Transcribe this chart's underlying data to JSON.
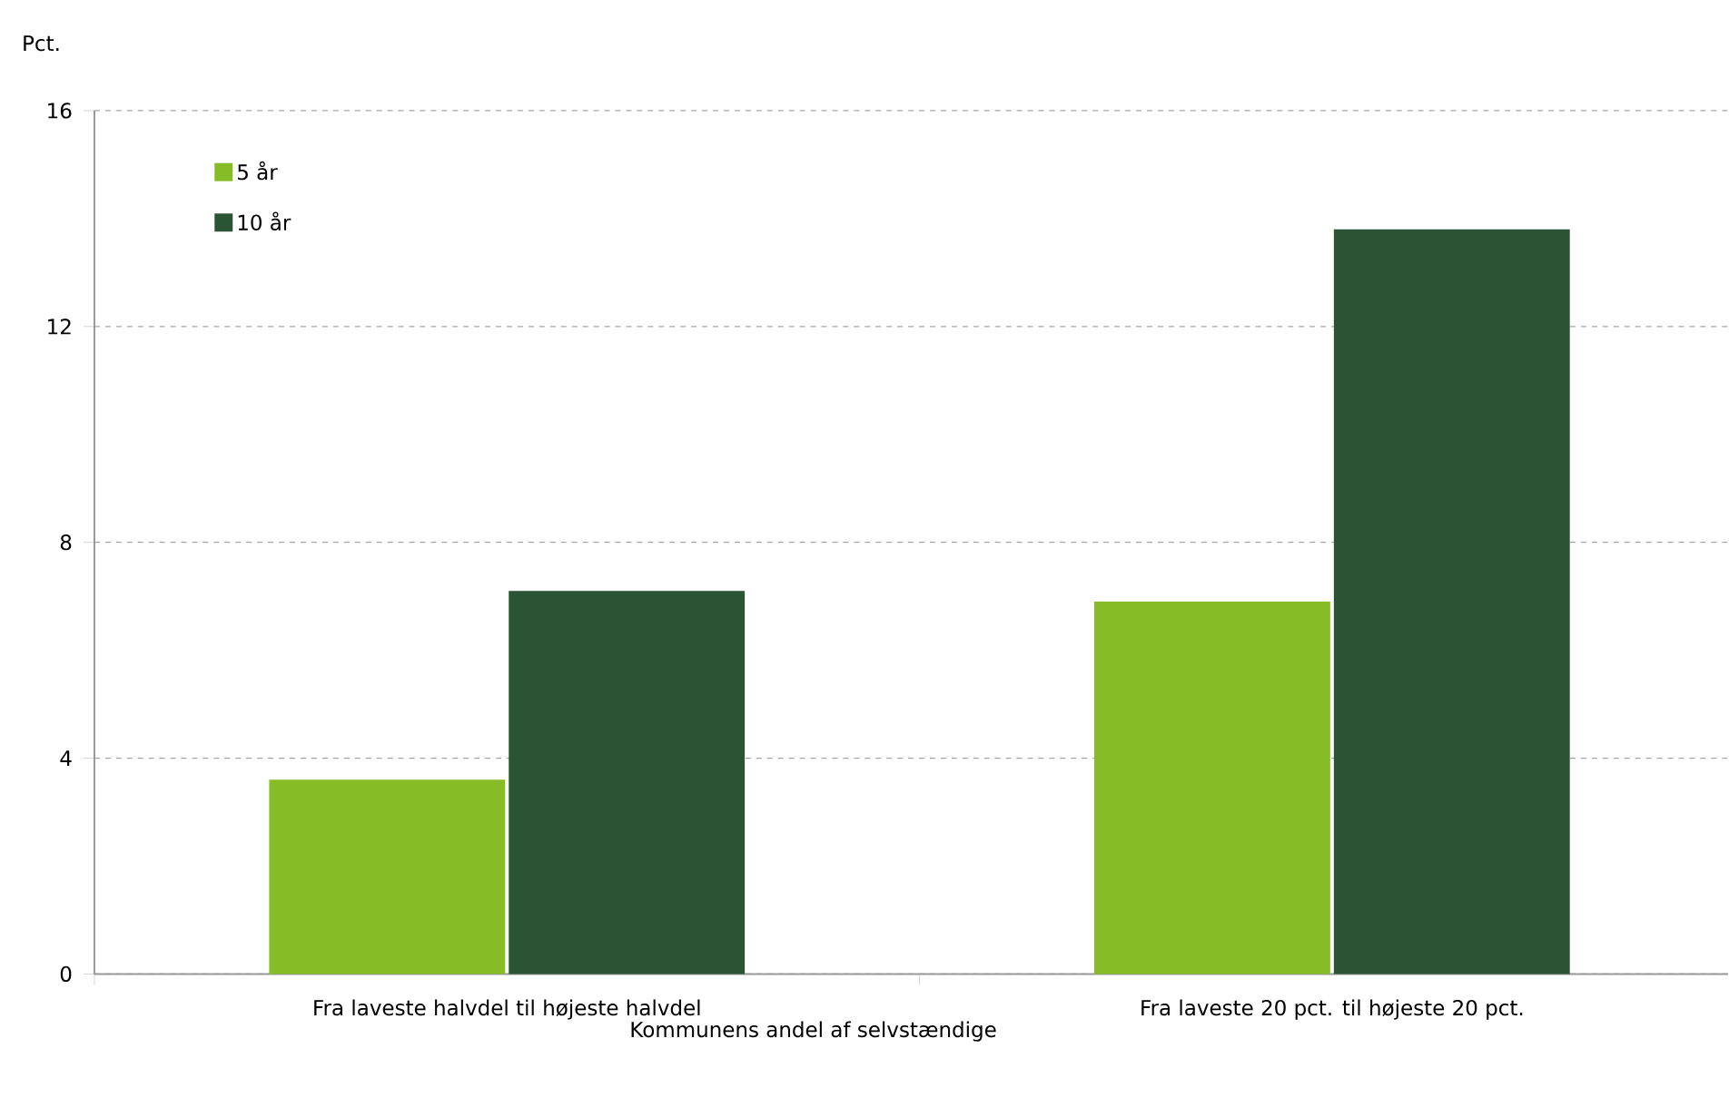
{
  "chart_data": {
    "type": "bar",
    "ylabel": "Pct.",
    "xlabel": "Kommunens andel af selvstændige",
    "categories": [
      "Fra laveste halvdel til højeste halvdel",
      "Fra laveste 20 pct. til højeste 20 pct."
    ],
    "series": [
      {
        "name": "5 år",
        "color": "#86bc25",
        "values": [
          3.6,
          6.9
        ]
      },
      {
        "name": "10 år",
        "color": "#2b5434",
        "values": [
          7.1,
          13.8
        ]
      }
    ],
    "ylim": [
      0,
      16
    ],
    "yticks": [
      0,
      4,
      8,
      12,
      16
    ],
    "grid": "y",
    "legend": "top left"
  }
}
